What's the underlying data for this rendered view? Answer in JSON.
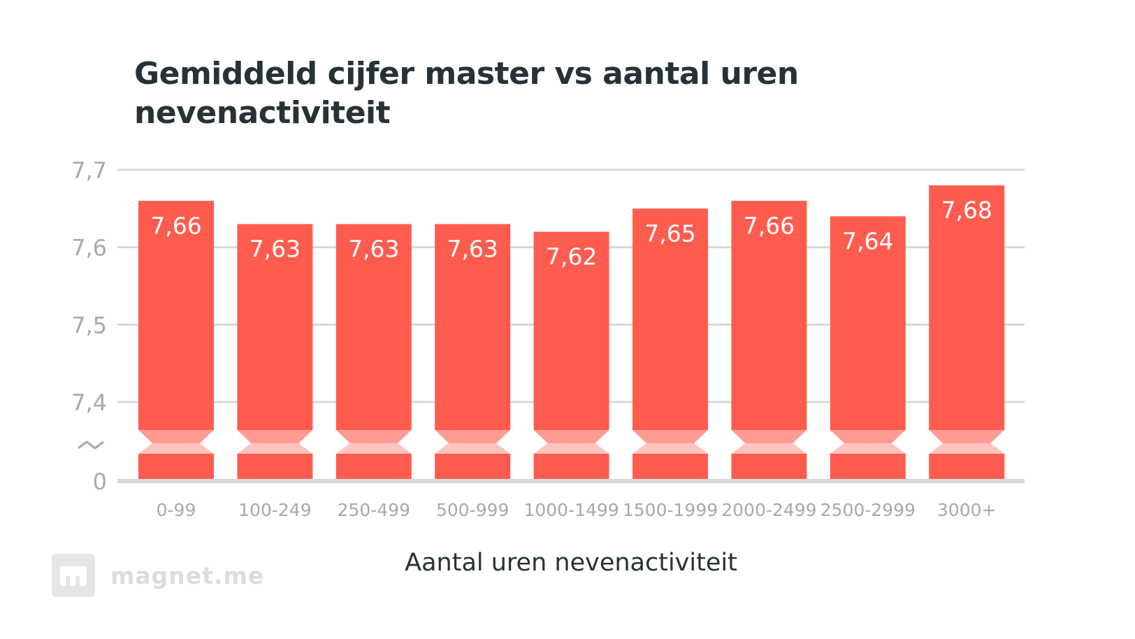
{
  "chart_data": {
    "type": "bar",
    "title": "Gemiddeld cijfer master vs aantal uren nevenactiviteit",
    "xlabel": "Aantal uren nevenactiviteit",
    "ylabel": "",
    "categories": [
      "0-99",
      "100-249",
      "250-499",
      "500-999",
      "1000-1499",
      "1500-1999",
      "2000-2499",
      "2500-2999",
      "3000+"
    ],
    "values": [
      7.66,
      7.63,
      7.63,
      7.63,
      7.62,
      7.65,
      7.66,
      7.64,
      7.68
    ],
    "value_labels": [
      "7,66",
      "7,63",
      "7,63",
      "7,63",
      "7,62",
      "7,65",
      "7,66",
      "7,64",
      "7,68"
    ],
    "ylim": [
      7.4,
      7.7
    ],
    "y_ticks": [
      7.4,
      7.5,
      7.6,
      7.7
    ],
    "y_tick_labels": [
      "7,4",
      "7,5",
      "7,6",
      "7,7"
    ],
    "y_zero_label": "0",
    "axis_break": true,
    "grid": true,
    "bar_color": "#ff5c50",
    "break_color_dark": "#ff9b93",
    "break_color_light": "#ffc3be"
  },
  "brand": {
    "name": "magnet.me"
  }
}
